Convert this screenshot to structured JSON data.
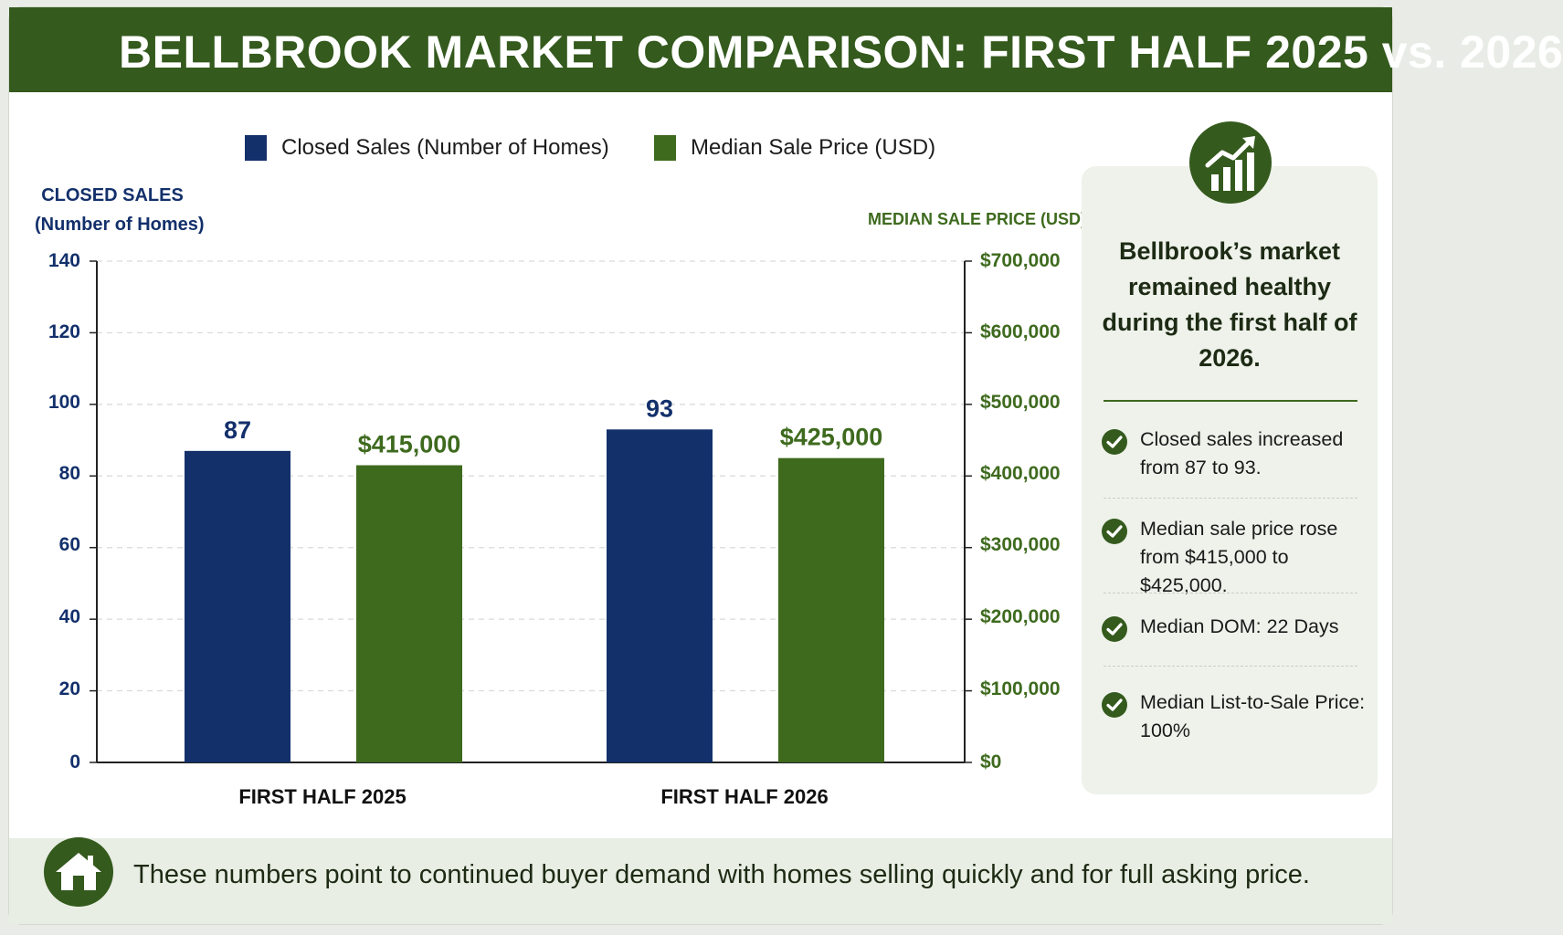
{
  "title": "BELLBROOK MARKET COMPARISON: FIRST HALF 2025 vs. 2026",
  "colors": {
    "header": "#345a1d",
    "sales": "#13306b",
    "price": "#3e6a1e",
    "accent": "#345a1d"
  },
  "legend": [
    {
      "label": "Closed Sales (Number of Homes)",
      "color": "#13306b"
    },
    {
      "label": "Median Sale Price (USD)",
      "color": "#3e6a1e"
    }
  ],
  "chart_data": {
    "type": "bar",
    "title": "BELLBROOK MARKET COMPARISON: FIRST HALF 2025 vs. 2026",
    "categories": [
      "FIRST HALF 2025",
      "FIRST HALF 2026"
    ],
    "y_left": {
      "label_line1": "CLOSED SALES",
      "label_line2": "(Number of Homes)",
      "range": [
        0,
        140
      ],
      "ticks": [
        "140",
        "120",
        "100",
        "80",
        "60",
        "40",
        "20",
        "0"
      ],
      "tick_values": [
        140,
        120,
        100,
        80,
        60,
        40,
        20,
        0
      ]
    },
    "y_right": {
      "label": "MEDIAN SALE PRICE (USD)",
      "range": [
        0,
        700000
      ],
      "ticks": [
        "$700,000",
        "$600,000",
        "$500,000",
        "$400,000",
        "$300,000",
        "$200,000",
        "$100,000",
        "$0"
      ]
    },
    "series": [
      {
        "name": "Closed Sales (Number of Homes)",
        "axis": "left",
        "values": [
          87,
          93
        ],
        "labels": [
          "87",
          "93"
        ],
        "color": "#13306b"
      },
      {
        "name": "Median Sale Price (USD)",
        "axis": "right",
        "values": [
          415000,
          425000
        ],
        "labels": [
          "$415,000",
          "$425,000"
        ],
        "color": "#3e6a1e"
      }
    ],
    "grid": true,
    "legend_position": "top"
  },
  "sidebar": {
    "heading": "Bellbrook’s market remained healthy during the first half of 2026.",
    "icon": "growth-chart-icon",
    "facts": [
      "Closed sales increased from 87 to 93.",
      "Median sale price rose from $415,000 to $425,000.",
      "Median DOM: 22 Days",
      "Median List-to-Sale Price: 100%"
    ]
  },
  "footer": {
    "icon": "house-icon",
    "text": "These numbers point to continued buyer demand with homes selling quickly and for full asking price."
  }
}
